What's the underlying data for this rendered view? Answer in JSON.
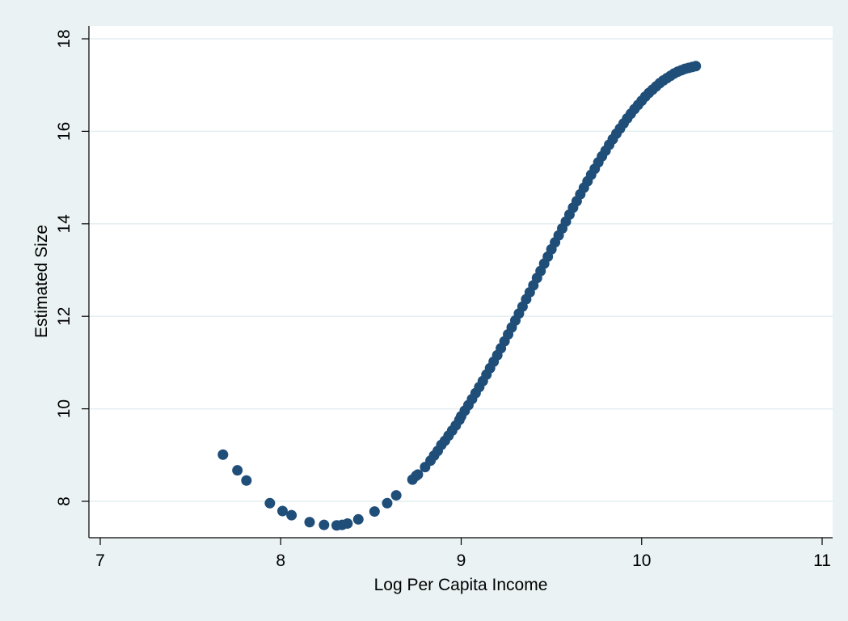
{
  "chart_data": {
    "type": "scatter",
    "xlabel": "Log Per Capita Income",
    "ylabel": "Estimated Size",
    "xlim": [
      7,
      11
    ],
    "ylim": [
      7.2,
      18.5
    ],
    "xticks": [
      7,
      8,
      9,
      10,
      11
    ],
    "yticks": [
      8,
      10,
      12,
      14,
      16,
      18
    ],
    "grid": "horizontal",
    "legend": "none",
    "marker_color": "#1f4e79",
    "background_color": "#eaf2f3",
    "plot_background": "#ffffff",
    "gridline_color": "#e4eef0",
    "points": [
      [
        7.68,
        9.01
      ],
      [
        7.76,
        8.67
      ],
      [
        7.81,
        8.45
      ],
      [
        7.94,
        7.96
      ],
      [
        8.01,
        7.79
      ],
      [
        8.06,
        7.7
      ],
      [
        8.16,
        7.55
      ],
      [
        8.24,
        7.49
      ],
      [
        8.31,
        7.48
      ],
      [
        8.34,
        7.49
      ],
      [
        8.37,
        7.52
      ],
      [
        8.43,
        7.61
      ],
      [
        8.52,
        7.78
      ],
      [
        8.59,
        7.96
      ],
      [
        8.64,
        8.13
      ],
      [
        8.73,
        8.47
      ],
      [
        8.75,
        8.55
      ],
      [
        8.76,
        8.58
      ],
      [
        8.8,
        8.74
      ],
      [
        8.83,
        8.88
      ],
      [
        8.85,
        8.99
      ],
      [
        8.87,
        9.09
      ],
      [
        8.89,
        9.22
      ],
      [
        8.91,
        9.31
      ],
      [
        8.93,
        9.42
      ],
      [
        8.95,
        9.53
      ],
      [
        8.97,
        9.64
      ],
      [
        8.99,
        9.76
      ],
      [
        9.0,
        9.84
      ],
      [
        9.02,
        9.96
      ],
      [
        9.04,
        10.08
      ],
      [
        9.06,
        10.21
      ],
      [
        9.08,
        10.34
      ],
      [
        9.1,
        10.47
      ],
      [
        9.12,
        10.6
      ],
      [
        9.14,
        10.74
      ],
      [
        9.16,
        10.88
      ],
      [
        9.18,
        11.02
      ],
      [
        9.2,
        11.16
      ],
      [
        9.22,
        11.31
      ],
      [
        9.24,
        11.46
      ],
      [
        9.26,
        11.61
      ],
      [
        9.28,
        11.76
      ],
      [
        9.3,
        11.91
      ],
      [
        9.32,
        12.06
      ],
      [
        9.34,
        12.21
      ],
      [
        9.36,
        12.37
      ],
      [
        9.38,
        12.52
      ],
      [
        9.4,
        12.67
      ],
      [
        9.42,
        12.83
      ],
      [
        9.44,
        12.98
      ],
      [
        9.46,
        13.14
      ],
      [
        9.48,
        13.29
      ],
      [
        9.5,
        13.45
      ],
      [
        9.52,
        13.6
      ],
      [
        9.54,
        13.75
      ],
      [
        9.56,
        13.9
      ],
      [
        9.58,
        14.05
      ],
      [
        9.6,
        14.2
      ],
      [
        9.62,
        14.35
      ],
      [
        9.64,
        14.49
      ],
      [
        9.66,
        14.64
      ],
      [
        9.68,
        14.78
      ],
      [
        9.7,
        14.92
      ],
      [
        9.72,
        15.06
      ],
      [
        9.74,
        15.19
      ],
      [
        9.76,
        15.33
      ],
      [
        9.78,
        15.46
      ],
      [
        9.8,
        15.58
      ],
      [
        9.82,
        15.71
      ],
      [
        9.84,
        15.83
      ],
      [
        9.86,
        15.95
      ],
      [
        9.88,
        16.06
      ],
      [
        9.9,
        16.17
      ],
      [
        9.92,
        16.28
      ],
      [
        9.94,
        16.38
      ],
      [
        9.96,
        16.48
      ],
      [
        9.98,
        16.57
      ],
      [
        10.0,
        16.66
      ],
      [
        10.02,
        16.75
      ],
      [
        10.04,
        16.83
      ],
      [
        10.06,
        16.9
      ],
      [
        10.08,
        16.97
      ],
      [
        10.1,
        17.04
      ],
      [
        10.12,
        17.1
      ],
      [
        10.14,
        17.15
      ],
      [
        10.16,
        17.2
      ],
      [
        10.18,
        17.25
      ],
      [
        10.2,
        17.29
      ],
      [
        10.22,
        17.32
      ],
      [
        10.24,
        17.35
      ],
      [
        10.26,
        17.37
      ],
      [
        10.28,
        17.39
      ],
      [
        10.3,
        17.41
      ]
    ]
  }
}
